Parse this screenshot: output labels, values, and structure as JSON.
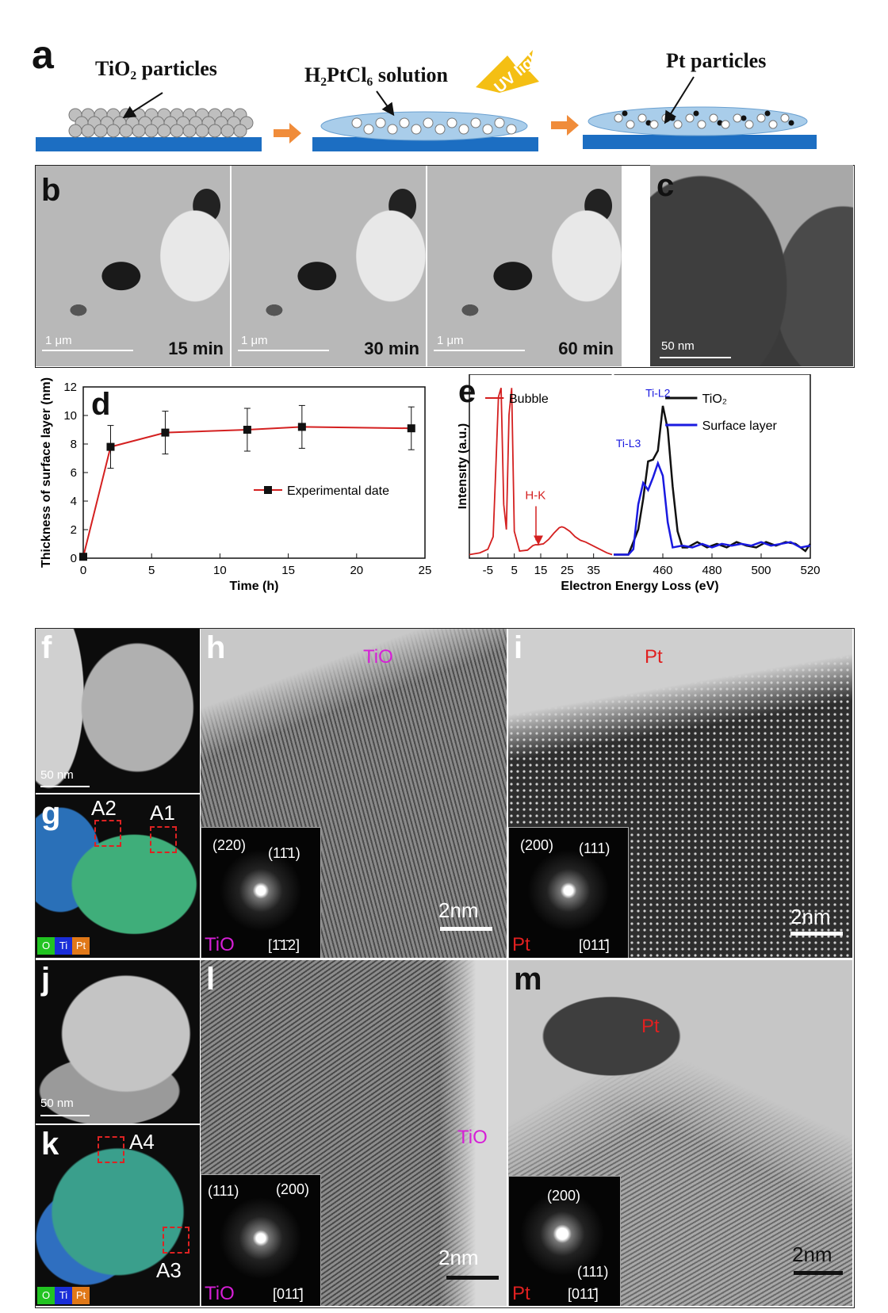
{
  "panel_a": {
    "label": "a",
    "step1_label": "TiO₂ particles",
    "step2_label": "H₂PtCl₆ solution",
    "uv_label": "UV light",
    "step3_label": "Pt particles"
  },
  "panel_b": {
    "label": "b",
    "frames": [
      {
        "time": "15 min",
        "scale": "1 μm"
      },
      {
        "time": "30 min",
        "scale": "1 μm"
      },
      {
        "time": "60 min",
        "scale": "1 μm"
      }
    ]
  },
  "panel_c": {
    "label": "c",
    "scale": "50 nm"
  },
  "panel_f": {
    "label": "f",
    "scale": "50 nm"
  },
  "panel_g": {
    "label": "g",
    "box_a2": "A2",
    "box_a1": "A1",
    "legend": [
      "O",
      "Ti",
      "Pt"
    ]
  },
  "panel_h": {
    "label": "h",
    "material": "TiO",
    "scale": "2nm",
    "fft_material": "TiO",
    "fft_spot1": "(220)",
    "fft_spot2": "(11̄1)",
    "fft_zone": "[1̄1̄2]"
  },
  "panel_i": {
    "label": "i",
    "material": "Pt",
    "scale": "2nm",
    "fft_material": "Pt",
    "fft_spot1": "(200)",
    "fft_spot2": "(111)",
    "fft_zone": "[011̄]"
  },
  "panel_j": {
    "label": "j",
    "scale": "50 nm"
  },
  "panel_k": {
    "label": "k",
    "box_a4": "A4",
    "box_a3": "A3",
    "legend": [
      "O",
      "Ti",
      "Pt"
    ]
  },
  "panel_l": {
    "label": "l",
    "material": "TiO",
    "scale": "2nm",
    "fft_material": "TiO",
    "fft_spot1": "(111)",
    "fft_spot2": "(200)",
    "fft_zone": "[011̄]"
  },
  "panel_m": {
    "label": "m",
    "material": "Pt",
    "scale": "2nm",
    "fft_material": "Pt",
    "fft_spot1": "(200)",
    "fft_spot2": "(111)",
    "fft_zone": "[011̄]"
  },
  "colors": {
    "pt_red": "#e02020",
    "tio_magenta": "#d61fd6",
    "bubble_red": "#d42020",
    "surface_blue": "#1a1ae0"
  },
  "chart_data": [
    {
      "panel": "d",
      "type": "line",
      "title": "",
      "xlabel": "Time (h)",
      "ylabel": "Thickness of surface layer (nm)",
      "xlim": [
        0,
        25
      ],
      "ylim": [
        0,
        12
      ],
      "xticks": [
        0,
        5,
        10,
        15,
        20,
        25
      ],
      "yticks": [
        0,
        2,
        4,
        6,
        8,
        10,
        12
      ],
      "series": [
        {
          "name": "Experimental date",
          "color": "#d42020",
          "x": [
            0,
            2,
            6,
            12,
            16,
            24
          ],
          "y": [
            0.1,
            7.8,
            8.8,
            9.0,
            9.2,
            9.1
          ],
          "err": [
            0,
            1.5,
            1.5,
            1.5,
            1.5,
            1.5
          ]
        }
      ]
    },
    {
      "panel": "e",
      "type": "line",
      "xlabel": "Electron Energy Loss (eV)",
      "ylabel": "Intensity (a.u.)",
      "left": {
        "xlim": [
          -12,
          42
        ],
        "xticks": [
          -5,
          5,
          15,
          25,
          35
        ],
        "annotation": "H-K",
        "series": [
          {
            "name": "Bubble",
            "color": "#d42020",
            "x": [
              -12,
              -8,
              -5,
              -3,
              -2,
              -1,
              0,
              1,
              2,
              3,
              4,
              5,
              7,
              10,
              12,
              13,
              14,
              16,
              18,
              20,
              22,
              23,
              24,
              26,
              28,
              30,
              32,
              34,
              36,
              38,
              40,
              42
            ],
            "y": [
              0.2,
              0.3,
              0.5,
              1.2,
              5,
              9,
              9.5,
              3,
              1.6,
              8,
              9.5,
              1.5,
              0.4,
              0.45,
              0.7,
              0.75,
              0.75,
              0.8,
              1.05,
              1.4,
              1.7,
              1.75,
              1.7,
              1.5,
              1.2,
              1.0,
              0.9,
              0.75,
              0.6,
              0.45,
              0.3,
              0.2
            ]
          }
        ]
      },
      "right": {
        "xlim": [
          440,
          520
        ],
        "xticks": [
          460,
          480,
          500,
          520
        ],
        "annotations": [
          "Ti-L2",
          "Ti-L3"
        ],
        "series": [
          {
            "name": "TiO₂",
            "color": "#111111",
            "x": [
              440,
              446,
              450,
              452,
              454,
              456,
              458,
              460,
              462,
              464,
              466,
              468,
              470,
              474,
              478,
              482,
              486,
              490,
              494,
              498,
              502,
              506,
              510,
              514,
              518,
              520
            ],
            "y": [
              0.2,
              0.2,
              1.6,
              3.3,
              5.4,
              5.5,
              6.0,
              8.5,
              7.2,
              4.0,
              1.5,
              0.6,
              0.6,
              0.9,
              0.6,
              0.8,
              0.6,
              0.9,
              0.7,
              0.6,
              0.9,
              0.7,
              0.9,
              0.8,
              0.4,
              0.8
            ]
          },
          {
            "name": "Surface layer",
            "color": "#1a1ae0",
            "x": [
              440,
              446,
              448,
              450,
              452,
              454,
              456,
              458,
              460,
              462,
              464,
              468,
              472,
              476,
              480,
              484,
              488,
              492,
              496,
              500,
              504,
              508,
              512,
              516,
              520
            ],
            "y": [
              0.2,
              0.2,
              0.5,
              3.0,
              4.2,
              3.8,
              4.5,
              5.3,
              4.6,
              2.0,
              0.6,
              0.7,
              0.6,
              0.8,
              0.6,
              0.8,
              0.7,
              0.8,
              0.7,
              0.9,
              0.7,
              0.8,
              0.9,
              0.6,
              0.7
            ]
          }
        ]
      }
    }
  ]
}
